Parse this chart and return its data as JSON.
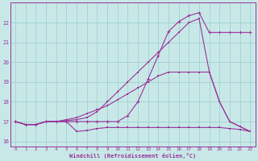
{
  "xlabel": "Windchill (Refroidissement éolien,°C)",
  "bg_color": "#c8e8e8",
  "line_color": "#993399",
  "grid_color": "#99cccc",
  "ylim": [
    15.75,
    23.0
  ],
  "xlim": [
    -0.5,
    23.5
  ],
  "yticks": [
    16,
    17,
    18,
    19,
    20,
    21,
    22
  ],
  "xticks": [
    0,
    1,
    2,
    3,
    4,
    5,
    6,
    7,
    8,
    9,
    10,
    11,
    12,
    13,
    14,
    15,
    16,
    17,
    18,
    19,
    20,
    21,
    22,
    23
  ],
  "line1_x": [
    0,
    1,
    2,
    3,
    4,
    5,
    6,
    7,
    8,
    9,
    10,
    11,
    12,
    13,
    14,
    15,
    16,
    17,
    18,
    19,
    20,
    21,
    22,
    23
  ],
  "line1_y": [
    17.0,
    16.85,
    16.85,
    17.0,
    17.0,
    17.0,
    16.5,
    16.55,
    16.65,
    16.7,
    16.7,
    16.7,
    16.7,
    16.7,
    16.7,
    16.7,
    16.7,
    16.7,
    16.7,
    16.7,
    16.7,
    16.65,
    16.6,
    16.5
  ],
  "line2_x": [
    0,
    1,
    2,
    3,
    4,
    5,
    6,
    7,
    8,
    9,
    10,
    11,
    12,
    13,
    14,
    15,
    16,
    17,
    18,
    19,
    20,
    21,
    22,
    23
  ],
  "line2_y": [
    17.0,
    16.85,
    16.85,
    17.0,
    17.0,
    17.0,
    17.0,
    17.0,
    17.0,
    17.0,
    17.0,
    17.3,
    18.0,
    19.15,
    20.35,
    21.55,
    22.05,
    22.35,
    22.5,
    21.5,
    21.5,
    21.5,
    21.5,
    21.5
  ],
  "line3_x": [
    0,
    1,
    2,
    3,
    4,
    5,
    6,
    7,
    8,
    9,
    10,
    11,
    12,
    13,
    14,
    15,
    16,
    17,
    18,
    19,
    20,
    21,
    22,
    23
  ],
  "line3_y": [
    17.0,
    16.85,
    16.85,
    17.0,
    17.0,
    17.05,
    17.1,
    17.2,
    17.5,
    18.0,
    18.5,
    19.0,
    19.5,
    20.0,
    20.5,
    21.0,
    21.5,
    22.0,
    22.2,
    19.5,
    18.0,
    17.0,
    16.75,
    16.5
  ],
  "line4_x": [
    0,
    1,
    2,
    3,
    4,
    5,
    6,
    7,
    8,
    9,
    10,
    11,
    12,
    13,
    14,
    15,
    16,
    17,
    18,
    19,
    20,
    21,
    22,
    23
  ],
  "line4_y": [
    17.0,
    16.85,
    16.85,
    17.0,
    17.0,
    17.1,
    17.2,
    17.4,
    17.6,
    17.8,
    18.1,
    18.4,
    18.7,
    19.0,
    19.3,
    19.5,
    19.5,
    19.5,
    19.5,
    19.5,
    18.0,
    17.0,
    16.75,
    16.5
  ]
}
